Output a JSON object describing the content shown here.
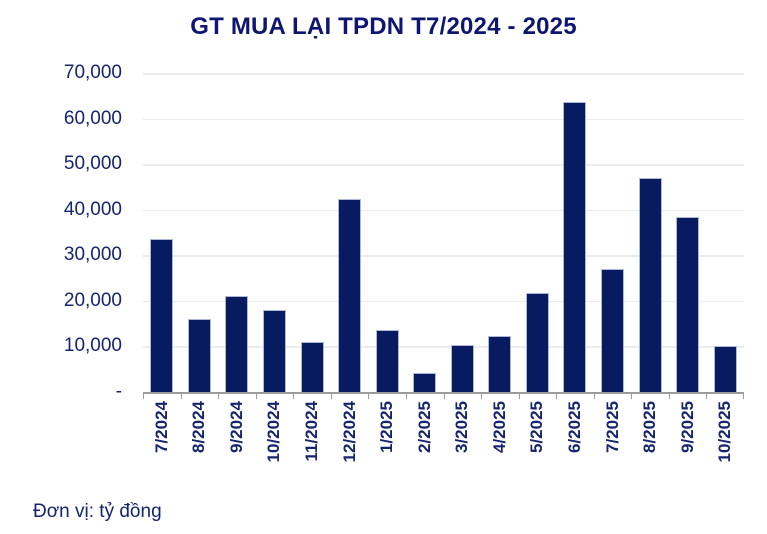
{
  "chart_data": {
    "type": "bar",
    "title": "GT MUA LẠI TPDN T7/2024 - 2025",
    "note": "Đơn vị: tỷ đồng",
    "categories": [
      "7/2024",
      "8/2024",
      "9/2024",
      "10/2024",
      "11/2024",
      "12/2024",
      "1/2025",
      "2/2025",
      "3/2025",
      "4/2025",
      "5/2025",
      "6/2025",
      "7/2025",
      "8/2025",
      "9/2025",
      "10/2025"
    ],
    "values": [
      33500,
      16000,
      21100,
      17900,
      11000,
      42300,
      13600,
      4200,
      10300,
      12400,
      21800,
      63700,
      27000,
      47000,
      38400,
      10200
    ],
    "xlabel": "",
    "ylabel": "",
    "ylim": [
      0,
      70000
    ],
    "ytick_interval": 10000,
    "ytick_labels": [
      "70,000",
      "60,000",
      "50,000",
      "40,000",
      "30,000",
      "20,000",
      "10,000",
      "-"
    ],
    "grid": true,
    "legend_position": "none",
    "colors": {
      "bar": "#081a60",
      "bar_edge": "#aeb8d8",
      "title": "#0e1672",
      "text": "#15246e",
      "grid": "#ececec",
      "axis": "#9c9c9c"
    }
  }
}
